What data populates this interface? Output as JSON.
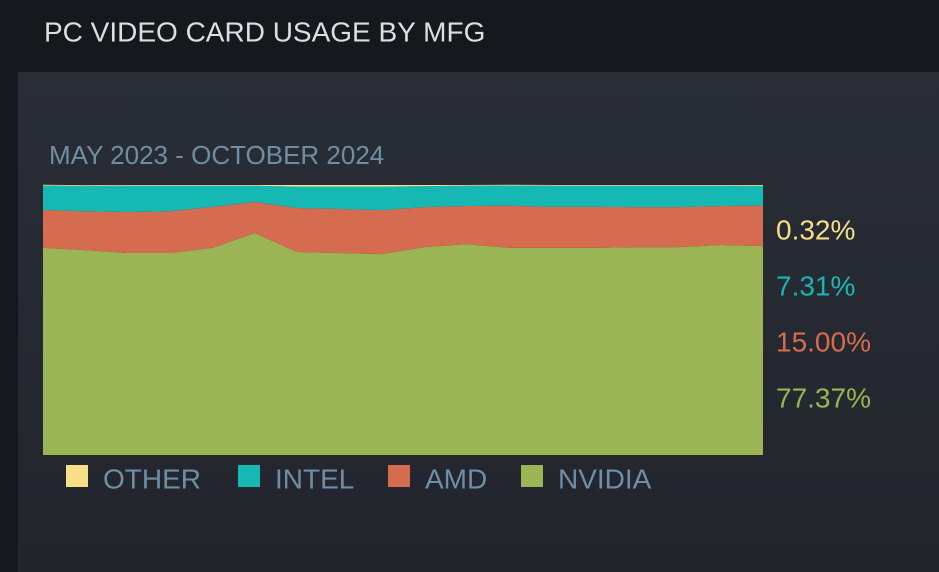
{
  "chart_data": {
    "type": "stacked_area",
    "title": "PC VIDEO CARD USAGE BY MFG",
    "subtitle": "MAY 2023 - OCTOBER 2024",
    "categories": [
      null,
      null,
      null,
      null,
      null,
      null,
      null,
      null,
      null,
      null,
      null,
      null,
      null,
      null,
      null,
      null,
      null,
      null
    ],
    "ylim": [
      0,
      100
    ],
    "series": [
      {
        "name": "OTHER",
        "color": "#f7df88",
        "values": [
          0.3,
          0.3,
          0.3,
          0.3,
          0.3,
          0.3,
          0.6,
          0.6,
          0.6,
          0.4,
          0.3,
          0.3,
          0.3,
          0.3,
          0.3,
          0.3,
          0.3,
          0.32
        ],
        "value_labels": [
          null,
          null,
          null,
          null,
          null,
          null,
          null,
          null,
          null,
          null,
          null,
          null,
          null,
          null,
          null,
          null,
          null,
          "0.32%"
        ]
      },
      {
        "name": "INTEL",
        "color": "#16b8b4",
        "values": [
          9.0,
          9.3,
          9.7,
          9.4,
          7.8,
          6.0,
          7.9,
          8.3,
          8.7,
          7.8,
          7.5,
          7.5,
          7.8,
          7.8,
          7.9,
          7.9,
          7.5,
          7.31
        ],
        "value_labels": [
          null,
          null,
          null,
          null,
          null,
          null,
          null,
          null,
          null,
          null,
          null,
          null,
          null,
          null,
          null,
          null,
          null,
          "7.31%"
        ]
      },
      {
        "name": "AMD",
        "color": "#d56c4f",
        "values": [
          14.1,
          14.4,
          15.2,
          15.5,
          15.2,
          11.5,
          16.3,
          16.3,
          16.3,
          14.8,
          14.1,
          15.6,
          15.2,
          15.2,
          14.8,
          14.8,
          14.4,
          15.0
        ],
        "value_labels": [
          null,
          null,
          null,
          null,
          null,
          null,
          null,
          null,
          null,
          null,
          null,
          null,
          null,
          null,
          null,
          null,
          null,
          "15.00%"
        ]
      },
      {
        "name": "NVIDIA",
        "color": "#9bb454",
        "values": [
          76.7,
          75.9,
          74.8,
          74.8,
          76.7,
          82.2,
          75.2,
          74.8,
          74.4,
          77.0,
          78.1,
          76.7,
          76.7,
          76.7,
          77.0,
          77.0,
          77.8,
          77.37
        ],
        "value_labels": [
          null,
          null,
          null,
          null,
          null,
          null,
          null,
          null,
          null,
          null,
          null,
          null,
          null,
          null,
          null,
          null,
          null,
          "77.37%"
        ]
      }
    ]
  }
}
